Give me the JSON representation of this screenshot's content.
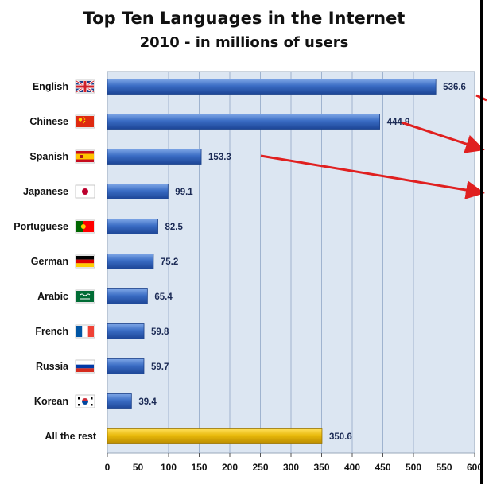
{
  "chart_data": {
    "type": "bar",
    "orientation": "horizontal",
    "title": "Top Ten Languages in the Internet",
    "subtitle": "2010 - in millions of users",
    "categories": [
      "English",
      "Chinese",
      "Spanish",
      "Japanese",
      "Portuguese",
      "German",
      "Arabic",
      "French",
      "Russia",
      "Korean",
      "All the rest"
    ],
    "values": [
      536.6,
      444.9,
      153.3,
      99.1,
      82.5,
      75.2,
      65.4,
      59.8,
      59.7,
      39.4,
      350.6
    ],
    "value_labels": [
      "536.6",
      "444.9",
      "153.3",
      "99.1",
      "82.5",
      "75.2",
      "65.4",
      "59.8",
      "59.7",
      "39.4",
      "350.6"
    ],
    "xlim": [
      0,
      600
    ],
    "xticks": [
      "0",
      "50",
      "100",
      "150",
      "200",
      "250",
      "300",
      "350",
      "400",
      "450",
      "500",
      "550",
      "600"
    ],
    "grid": true,
    "bar_colors": {
      "default": "#2e62b8",
      "highlight": "#e8b90a"
    },
    "highlight_category": "All the rest",
    "plot_background": "#dce6f2",
    "annotation_color": "#e02020",
    "flags": [
      "uk-flag-icon",
      "china-flag-icon",
      "spain-flag-icon",
      "japan-flag-icon",
      "portugal-flag-icon",
      "germany-flag-icon",
      "saudi-arabia-flag-icon",
      "france-flag-icon",
      "russia-flag-icon",
      "south-korea-flag-icon",
      ""
    ]
  }
}
